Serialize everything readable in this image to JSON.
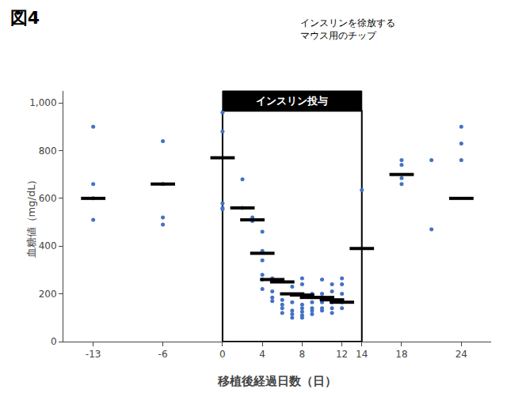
{
  "chart_data": {
    "type": "scatter",
    "title": "図4",
    "xlabel": "移植後経過日数（日）",
    "ylabel": "血糖値（mg/dL）",
    "annotations": [
      {
        "text": "インスリンを徐放する\nマウス用のチップ"
      }
    ],
    "insulin_box": {
      "label": "インスリン投与",
      "x": [
        0,
        14
      ]
    },
    "xlim": [
      -16,
      27
    ],
    "ylim": [
      0,
      1050
    ],
    "xticks": [
      -13,
      -6,
      0,
      4,
      8,
      12,
      14,
      18,
      24
    ],
    "yticks": [
      0,
      200,
      400,
      600,
      800,
      {
        "value": 1000,
        "label": "1,000"
      }
    ],
    "grid": false,
    "series": [
      {
        "type": "scatter",
        "marker": "circle",
        "color": "#4472C4",
        "x": [
          -13,
          -13,
          -13,
          -13,
          -6,
          -6,
          -6,
          -6,
          0,
          0,
          0,
          0,
          0,
          2,
          2,
          3,
          3,
          4,
          4,
          4,
          4,
          4,
          4,
          5,
          5,
          5,
          5,
          6,
          6,
          6,
          6,
          7,
          7,
          7,
          7,
          7,
          8,
          8,
          8,
          8,
          8,
          8,
          8,
          9,
          9,
          9,
          9,
          9,
          10,
          10,
          10,
          10,
          10,
          11,
          11,
          11,
          11,
          11,
          12,
          12,
          12,
          12,
          12,
          14,
          18,
          18,
          18,
          18,
          21,
          21,
          24,
          24,
          24
        ],
        "values": [
          900,
          660,
          600,
          510,
          840,
          660,
          520,
          490,
          960,
          880,
          580,
          560,
          555,
          680,
          560,
          520,
          505,
          460,
          380,
          340,
          280,
          260,
          220,
          265,
          210,
          185,
          170,
          175,
          155,
          140,
          120,
          230,
          165,
          130,
          115,
          100,
          265,
          240,
          155,
          140,
          125,
          110,
          100,
          200,
          165,
          140,
          130,
          115,
          260,
          200,
          165,
          140,
          130,
          240,
          210,
          165,
          140,
          120,
          265,
          240,
          200,
          165,
          140,
          635,
          760,
          740,
          685,
          660,
          760,
          470,
          830,
          760,
          900
        ]
      },
      {
        "type": "mean_bar",
        "marker": "line",
        "color": "#000000",
        "x": [
          -13,
          -6,
          0,
          2,
          3,
          4,
          5,
          6,
          7,
          8,
          9,
          10,
          11,
          12,
          14,
          18,
          24
        ],
        "values": [
          600,
          660,
          770,
          560,
          510,
          370,
          260,
          250,
          200,
          195,
          185,
          185,
          175,
          165,
          390,
          700,
          600
        ]
      }
    ]
  }
}
